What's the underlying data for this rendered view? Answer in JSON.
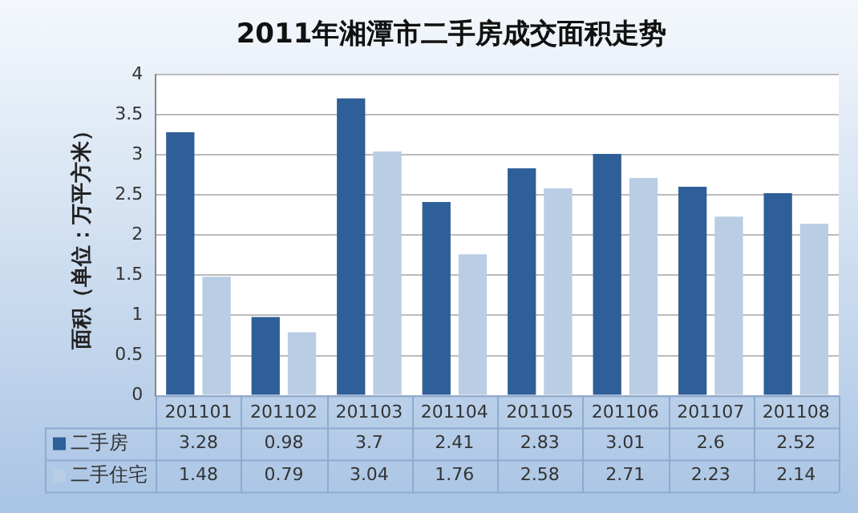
{
  "chart_data": {
    "type": "bar",
    "title": "2011年湘潭市二手房成交面积走势",
    "ylabel": "面积（单位：万平方米）",
    "categories": [
      "201101",
      "201102",
      "201103",
      "201104",
      "201105",
      "201106",
      "201107",
      "201108"
    ],
    "series": [
      {
        "name": "二手房",
        "color": "#2f5f98",
        "values": [
          3.28,
          0.98,
          3.7,
          2.41,
          2.83,
          3.01,
          2.6,
          2.52
        ]
      },
      {
        "name": "二手住宅",
        "color": "#b9cde5",
        "values": [
          1.48,
          0.79,
          3.04,
          1.76,
          2.58,
          2.71,
          2.23,
          2.14
        ]
      }
    ],
    "ylim": [
      0,
      4
    ],
    "yticks": [
      0,
      0.5,
      1,
      1.5,
      2,
      2.5,
      3,
      3.5,
      4
    ],
    "grid": "y",
    "legend": "bottom",
    "data_labels": true
  }
}
